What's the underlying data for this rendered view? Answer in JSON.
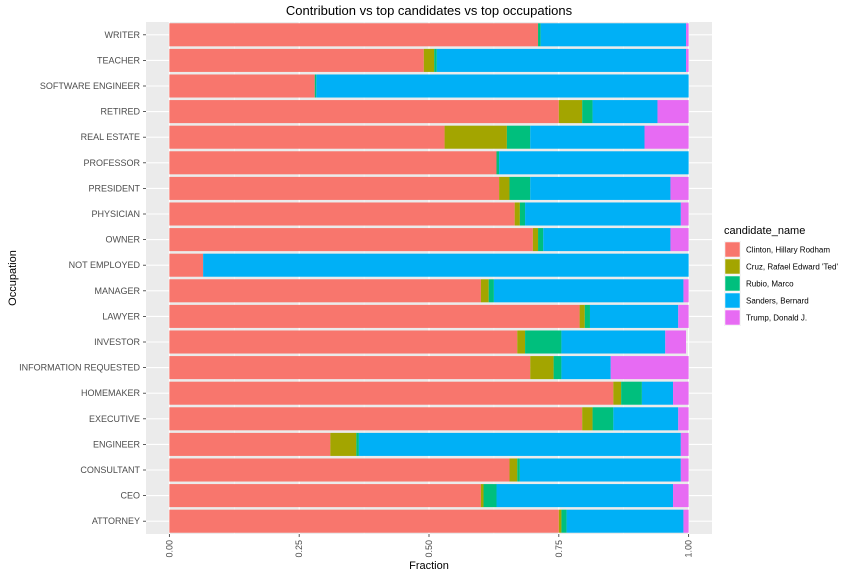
{
  "chart_data": {
    "type": "bar",
    "orientation": "horizontal",
    "stacked": "fill",
    "title": "Contribution vs top candidates vs top occupations",
    "xlabel": "Fraction",
    "ylabel": "Occupation",
    "xlim": [
      0,
      1
    ],
    "xticks": [
      "0.00",
      "0.25",
      "0.50",
      "0.75",
      "1.00"
    ],
    "grid": true,
    "legend": {
      "title": "candidate_name",
      "position": "right"
    },
    "categories": [
      "WRITER",
      "TEACHER",
      "SOFTWARE ENGINEER",
      "RETIRED",
      "REAL ESTATE",
      "PROFESSOR",
      "PRESIDENT",
      "PHYSICIAN",
      "OWNER",
      "NOT EMPLOYED",
      "MANAGER",
      "LAWYER",
      "INVESTOR",
      "INFORMATION REQUESTED",
      "HOMEMAKER",
      "EXECUTIVE",
      "ENGINEER",
      "CONSULTANT",
      "CEO",
      "ATTORNEY"
    ],
    "series": [
      {
        "name": "Clinton, Hillary Rodham",
        "color": "#F8766D",
        "values": [
          0.71,
          0.49,
          0.28,
          0.75,
          0.53,
          0.63,
          0.635,
          0.665,
          0.7,
          0.065,
          0.6,
          0.79,
          0.67,
          0.695,
          0.855,
          0.795,
          0.31,
          0.655,
          0.6,
          0.75
        ]
      },
      {
        "name": "Cruz, Rafael Edward 'Ted'",
        "color": "#A3A500",
        "values": [
          0.0,
          0.02,
          0.0,
          0.045,
          0.12,
          0.0,
          0.02,
          0.01,
          0.01,
          0.0,
          0.015,
          0.01,
          0.015,
          0.045,
          0.015,
          0.02,
          0.05,
          0.015,
          0.005,
          0.005
        ]
      },
      {
        "name": "Rubio, Marco",
        "color": "#00BF7D",
        "values": [
          0.005,
          0.005,
          0.003,
          0.02,
          0.045,
          0.005,
          0.04,
          0.01,
          0.01,
          0.0,
          0.01,
          0.01,
          0.07,
          0.015,
          0.04,
          0.04,
          0.005,
          0.005,
          0.025,
          0.01
        ]
      },
      {
        "name": "Sanders, Bernard",
        "color": "#00B0F6",
        "values": [
          0.28,
          0.48,
          0.717,
          0.125,
          0.22,
          0.365,
          0.27,
          0.3,
          0.245,
          0.935,
          0.365,
          0.17,
          0.2,
          0.095,
          0.06,
          0.125,
          0.62,
          0.31,
          0.34,
          0.225
        ]
      },
      {
        "name": "Trump, Donald J.",
        "color": "#E76BF3",
        "values": [
          0.005,
          0.005,
          0.0,
          0.06,
          0.085,
          0.0,
          0.035,
          0.015,
          0.035,
          0.0,
          0.01,
          0.02,
          0.04,
          0.15,
          0.03,
          0.02,
          0.015,
          0.015,
          0.03,
          0.01
        ]
      }
    ]
  }
}
